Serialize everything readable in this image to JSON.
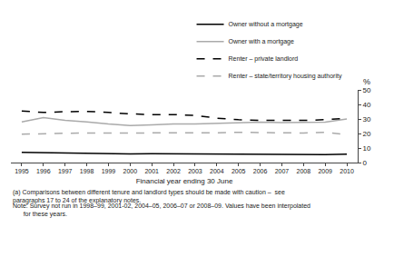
{
  "chart_data": {
    "type": "line",
    "x": [
      1995,
      1996,
      1997,
      1998,
      1999,
      2000,
      2001,
      2002,
      2003,
      2004,
      2005,
      2006,
      2007,
      2008,
      2009,
      2010
    ],
    "series": [
      {
        "name": "Owner without a mortgage",
        "color": "#000000",
        "line_style": "solid",
        "values": [
          7.0,
          6.8,
          6.3,
          6.2,
          6.1,
          6.0,
          6.1,
          6.0,
          6.0,
          5.8,
          5.5,
          5.4,
          5.3,
          5.3,
          5.5,
          5.8
        ]
      },
      {
        "name": "Owner with a mortgage",
        "color": "#aaaaaa",
        "line_style": "solid",
        "values": [
          28.0,
          31.0,
          29.0,
          28.0,
          26.5,
          25.5,
          26.0,
          26.5,
          26.5,
          27.0,
          27.5,
          27.8,
          27.5,
          27.5,
          27.8,
          30.0
        ]
      },
      {
        "name": "Renter – private landlord",
        "color": "#000000",
        "line_style": "dashed",
        "values": [
          35.5,
          34.5,
          35.0,
          35.2,
          34.5,
          33.5,
          33.0,
          33.0,
          32.5,
          30.5,
          29.5,
          29.0,
          29.0,
          29.0,
          29.5,
          30.5
        ]
      },
      {
        "name": "Renter – state/territory housing authority",
        "color": "#aaaaaa",
        "line_style": "dashed",
        "values": [
          19.5,
          20.0,
          20.2,
          20.3,
          20.3,
          20.3,
          20.3,
          20.3,
          20.3,
          20.5,
          20.8,
          20.5,
          20.5,
          20.3,
          20.8,
          19.3
        ]
      }
    ],
    "xlabel": "Financial year ending 30 June",
    "ylabel": "%",
    "xlim": [
      1994.5,
      2010.5
    ],
    "xticks": [
      1995,
      1996,
      1997,
      1998,
      1999,
      2000,
      2001,
      2002,
      2003,
      2004,
      2005,
      2006,
      2007,
      2008,
      2009,
      2010
    ],
    "ylim": [
      0,
      50
    ],
    "yticks": [
      0,
      10,
      20,
      30,
      40,
      50
    ],
    "grid": false,
    "legend": "upper right",
    "annotations": [
      "(a) Comparisons between different tenure and landlord types should be made with caution –  see\nparagraphs 17 to 24 of the explanatory notes.",
      "Note: Survey not run in 1998–99, 2001-02, 2004–05, 2006–07 or 2008–09. Values have been interpolated\n      for these years."
    ]
  }
}
